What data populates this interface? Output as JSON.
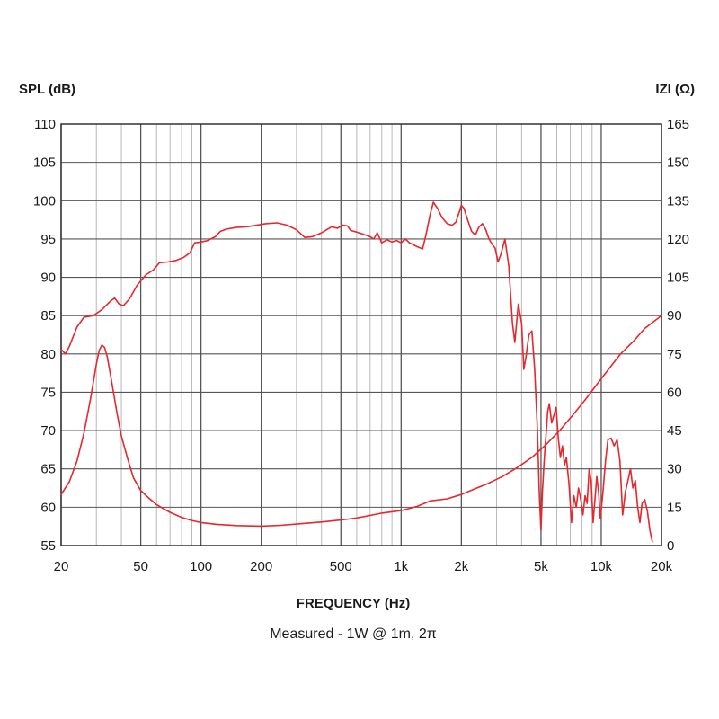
{
  "chart_data": {
    "type": "line",
    "ylabel_left": "SPL (dB)",
    "ylabel_right": "IZI (Ω)",
    "xlabel": "FREQUENCY (Hz)",
    "caption": "Measured - 1W @ 1m, 2π",
    "x_scale": "log",
    "xlim": [
      20,
      20000
    ],
    "ylim_left": [
      55,
      110
    ],
    "ylim_right": [
      0,
      165
    ],
    "grid": true,
    "x_ticks": [
      {
        "value": 20,
        "label": "20"
      },
      {
        "value": 50,
        "label": "50"
      },
      {
        "value": 100,
        "label": "100"
      },
      {
        "value": 200,
        "label": "200"
      },
      {
        "value": 500,
        "label": "500"
      },
      {
        "value": 1000,
        "label": "1k"
      },
      {
        "value": 2000,
        "label": "2k"
      },
      {
        "value": 5000,
        "label": "5k"
      },
      {
        "value": 10000,
        "label": "10k"
      },
      {
        "value": 20000,
        "label": "20k"
      }
    ],
    "y_ticks_left": [
      "55",
      "60",
      "65",
      "70",
      "75",
      "80",
      "85",
      "90",
      "95",
      "100",
      "105",
      "110"
    ],
    "y_ticks_right": [
      "0",
      "15",
      "30",
      "45",
      "60",
      "75",
      "90",
      "105",
      "120",
      "135",
      "150",
      "165"
    ],
    "line_color": "#e8262d",
    "grid_color": "#555555",
    "minor_grid_color": "#b8b8b8",
    "series": [
      {
        "axis": "left",
        "points": [
          [
            20,
            80.6
          ],
          [
            21,
            80.0
          ],
          [
            22,
            81.0
          ],
          [
            24,
            83.5
          ],
          [
            26,
            84.8
          ],
          [
            29,
            85.0
          ],
          [
            32,
            85.8
          ],
          [
            35,
            86.8
          ],
          [
            37,
            87.3
          ],
          [
            39,
            86.5
          ],
          [
            41,
            86.3
          ],
          [
            44,
            87.2
          ],
          [
            48,
            89.0
          ],
          [
            53,
            90.3
          ],
          [
            58,
            91.0
          ],
          [
            62,
            91.9
          ],
          [
            68,
            92.0
          ],
          [
            75,
            92.2
          ],
          [
            82,
            92.6
          ],
          [
            88,
            93.2
          ],
          [
            93,
            94.5
          ],
          [
            100,
            94.6
          ],
          [
            108,
            94.8
          ],
          [
            118,
            95.3
          ],
          [
            125,
            96.0
          ],
          [
            135,
            96.3
          ],
          [
            150,
            96.5
          ],
          [
            170,
            96.6
          ],
          [
            190,
            96.8
          ],
          [
            210,
            97.0
          ],
          [
            240,
            97.1
          ],
          [
            270,
            96.8
          ],
          [
            300,
            96.2
          ],
          [
            330,
            95.2
          ],
          [
            360,
            95.3
          ],
          [
            400,
            95.8
          ],
          [
            450,
            96.6
          ],
          [
            480,
            96.4
          ],
          [
            510,
            96.8
          ],
          [
            540,
            96.7
          ],
          [
            560,
            96.1
          ],
          [
            600,
            95.9
          ],
          [
            650,
            95.6
          ],
          [
            700,
            95.3
          ],
          [
            730,
            95.0
          ],
          [
            760,
            95.8
          ],
          [
            800,
            94.5
          ],
          [
            850,
            94.9
          ],
          [
            900,
            94.6
          ],
          [
            950,
            94.8
          ],
          [
            1000,
            94.5
          ],
          [
            1050,
            95.0
          ],
          [
            1100,
            94.5
          ],
          [
            1200,
            94.0
          ],
          [
            1280,
            93.7
          ],
          [
            1330,
            95.5
          ],
          [
            1400,
            98.3
          ],
          [
            1450,
            99.8
          ],
          [
            1520,
            99.0
          ],
          [
            1600,
            97.8
          ],
          [
            1700,
            97.0
          ],
          [
            1800,
            96.8
          ],
          [
            1880,
            97.2
          ],
          [
            1950,
            98.5
          ],
          [
            2000,
            99.4
          ],
          [
            2060,
            99.0
          ],
          [
            2150,
            97.5
          ],
          [
            2250,
            96.0
          ],
          [
            2350,
            95.5
          ],
          [
            2450,
            96.6
          ],
          [
            2550,
            97.0
          ],
          [
            2650,
            96.2
          ],
          [
            2750,
            95.0
          ],
          [
            2850,
            94.3
          ],
          [
            2950,
            93.8
          ],
          [
            3050,
            92.0
          ],
          [
            3150,
            93.0
          ],
          [
            3300,
            95.0
          ],
          [
            3450,
            91.5
          ],
          [
            3600,
            84.0
          ],
          [
            3700,
            81.5
          ],
          [
            3850,
            86.5
          ],
          [
            4000,
            84.0
          ],
          [
            4100,
            78.0
          ],
          [
            4200,
            79.5
          ],
          [
            4350,
            82.5
          ],
          [
            4500,
            83.0
          ],
          [
            4650,
            78.0
          ],
          [
            4800,
            70.0
          ],
          [
            4900,
            62.0
          ],
          [
            5000,
            57.0
          ],
          [
            5080,
            62.0
          ],
          [
            5200,
            66.5
          ],
          [
            5300,
            69.5
          ],
          [
            5400,
            72.5
          ],
          [
            5500,
            73.5
          ],
          [
            5650,
            71.0
          ],
          [
            5800,
            72.0
          ],
          [
            5950,
            73.0
          ],
          [
            6100,
            69.0
          ],
          [
            6250,
            66.5
          ],
          [
            6400,
            68.0
          ],
          [
            6550,
            65.5
          ],
          [
            6700,
            66.5
          ],
          [
            6900,
            63.0
          ],
          [
            7100,
            58.0
          ],
          [
            7300,
            61.5
          ],
          [
            7500,
            60.0
          ],
          [
            7700,
            62.5
          ],
          [
            7900,
            61.0
          ],
          [
            8100,
            59.0
          ],
          [
            8300,
            61.5
          ],
          [
            8500,
            60.5
          ],
          [
            8700,
            65.0
          ],
          [
            8900,
            63.5
          ],
          [
            9100,
            58.0
          ],
          [
            9300,
            61.0
          ],
          [
            9500,
            64.0
          ],
          [
            9700,
            62.0
          ],
          [
            9900,
            58.5
          ],
          [
            10200,
            62.0
          ],
          [
            10500,
            66.0
          ],
          [
            10800,
            68.8
          ],
          [
            11200,
            69.0
          ],
          [
            11600,
            68.0
          ],
          [
            12000,
            68.8
          ],
          [
            12400,
            66.0
          ],
          [
            12800,
            59.0
          ],
          [
            13200,
            62.0
          ],
          [
            13600,
            63.5
          ],
          [
            14000,
            65.0
          ],
          [
            14400,
            62.5
          ],
          [
            14800,
            63.5
          ],
          [
            15200,
            60.0
          ],
          [
            15600,
            58.0
          ],
          [
            16000,
            60.5
          ],
          [
            16500,
            61.0
          ],
          [
            17000,
            59.5
          ],
          [
            17500,
            57.0
          ],
          [
            18000,
            55.5
          ]
        ]
      },
      {
        "axis": "right",
        "points": [
          [
            20,
            20.0
          ],
          [
            22,
            25.0
          ],
          [
            24,
            33.0
          ],
          [
            26,
            44.0
          ],
          [
            28,
            57.0
          ],
          [
            30,
            71.0
          ],
          [
            31,
            76.5
          ],
          [
            32,
            78.5
          ],
          [
            33,
            77.5
          ],
          [
            34,
            74.0
          ],
          [
            36,
            63.0
          ],
          [
            38,
            52.0
          ],
          [
            40,
            43.0
          ],
          [
            43,
            34.0
          ],
          [
            46,
            26.5
          ],
          [
            50,
            21.5
          ],
          [
            55,
            18.5
          ],
          [
            60,
            16.0
          ],
          [
            70,
            13.0
          ],
          [
            80,
            11.0
          ],
          [
            90,
            9.8
          ],
          [
            100,
            9.0
          ],
          [
            120,
            8.3
          ],
          [
            150,
            7.8
          ],
          [
            200,
            7.6
          ],
          [
            250,
            7.9
          ],
          [
            300,
            8.4
          ],
          [
            400,
            9.2
          ],
          [
            500,
            10.0
          ],
          [
            600,
            10.8
          ],
          [
            700,
            11.8
          ],
          [
            800,
            12.7
          ],
          [
            1000,
            13.7
          ],
          [
            1200,
            15.3
          ],
          [
            1400,
            17.5
          ],
          [
            1700,
            18.3
          ],
          [
            2000,
            20.0
          ],
          [
            2300,
            22.0
          ],
          [
            2700,
            24.2
          ],
          [
            3200,
            27.0
          ],
          [
            3800,
            30.5
          ],
          [
            4500,
            34.5
          ],
          [
            5300,
            39.5
          ],
          [
            6200,
            45.0
          ],
          [
            7200,
            51.0
          ],
          [
            8300,
            57.0
          ],
          [
            9500,
            63.0
          ],
          [
            11000,
            69.5
          ],
          [
            12500,
            75.0
          ],
          [
            14500,
            80.0
          ],
          [
            16500,
            85.0
          ],
          [
            20000,
            90.0
          ]
        ]
      }
    ]
  }
}
